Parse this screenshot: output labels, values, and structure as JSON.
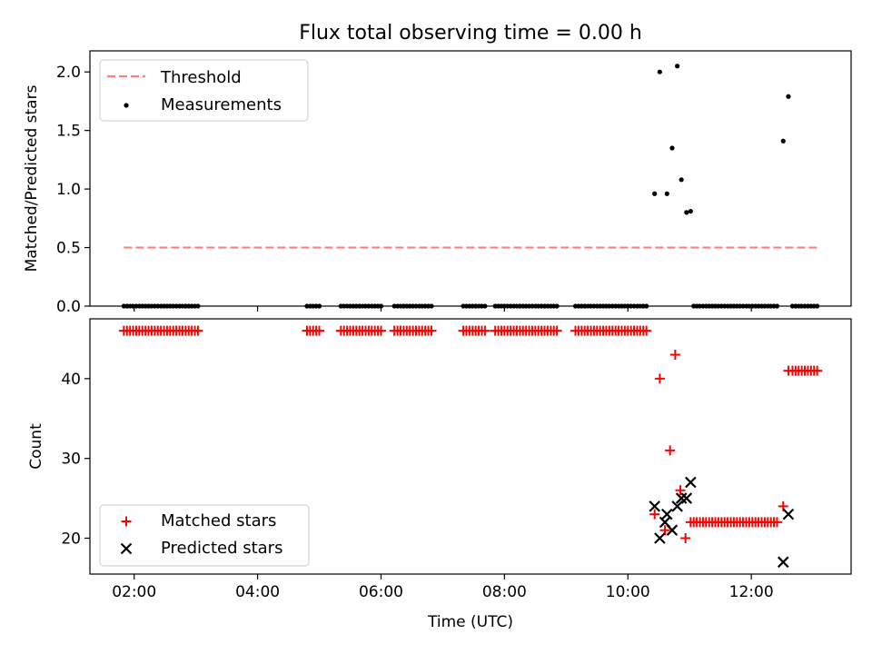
{
  "title": "Flux total observing time = 0.00 h",
  "chart_data": [
    {
      "type": "scatter",
      "panel": "top",
      "ylabel": "Matched/Predicted stars",
      "xlim": [
        "01:17",
        "13:37"
      ],
      "ylim": [
        0,
        2.18
      ],
      "yticks": [
        0.0,
        0.5,
        1.0,
        1.5,
        2.0
      ],
      "legend_position": "upper-left",
      "colors": {
        "threshold": "#ff7f7f",
        "measurements": "#000000"
      },
      "threshold": {
        "name": "Threshold",
        "y": 0.5,
        "x_range": [
          "01:50",
          "13:05"
        ]
      },
      "measurements": {
        "name": "Measurements",
        "x": [
          "01:50",
          "01:53",
          "01:56",
          "01:59",
          "02:02",
          "02:05",
          "02:08",
          "02:11",
          "02:14",
          "02:17",
          "02:20",
          "02:23",
          "02:26",
          "02:29",
          "02:32",
          "02:35",
          "02:38",
          "02:41",
          "02:44",
          "02:47",
          "02:50",
          "02:53",
          "02:56",
          "02:59",
          "03:02",
          "04:48",
          "04:51",
          "04:54",
          "04:57",
          "05:00",
          "05:21",
          "05:24",
          "05:27",
          "05:30",
          "05:33",
          "05:36",
          "05:39",
          "05:42",
          "05:45",
          "05:48",
          "05:51",
          "05:54",
          "05:57",
          "06:00",
          "06:13",
          "06:16",
          "06:19",
          "06:22",
          "06:25",
          "06:28",
          "06:31",
          "06:34",
          "06:37",
          "06:40",
          "06:43",
          "06:46",
          "06:49",
          "07:20",
          "07:23",
          "07:26",
          "07:29",
          "07:32",
          "07:35",
          "07:38",
          "07:41",
          "07:51",
          "07:54",
          "07:57",
          "08:00",
          "08:03",
          "08:06",
          "08:09",
          "08:12",
          "08:15",
          "08:18",
          "08:21",
          "08:24",
          "08:27",
          "08:30",
          "08:33",
          "08:36",
          "08:39",
          "08:42",
          "08:45",
          "08:48",
          "08:51",
          "09:09",
          "09:12",
          "09:15",
          "09:18",
          "09:21",
          "09:24",
          "09:27",
          "09:30",
          "09:33",
          "09:36",
          "09:39",
          "09:42",
          "09:45",
          "09:48",
          "09:51",
          "09:54",
          "09:57",
          "10:00",
          "10:03",
          "10:06",
          "10:09",
          "10:12",
          "10:15",
          "10:18",
          "10:26",
          "10:31",
          "10:38",
          "10:43",
          "10:48",
          "10:52",
          "10:57",
          "11:01",
          "11:04",
          "11:07",
          "11:10",
          "11:13",
          "11:16",
          "11:19",
          "11:22",
          "11:25",
          "11:28",
          "11:31",
          "11:34",
          "11:37",
          "11:40",
          "11:43",
          "11:46",
          "11:49",
          "11:52",
          "11:55",
          "11:58",
          "12:01",
          "12:04",
          "12:07",
          "12:10",
          "12:13",
          "12:16",
          "12:19",
          "12:22",
          "12:25",
          "12:31",
          "12:36",
          "12:40",
          "12:43",
          "12:46",
          "12:49",
          "12:52",
          "12:55",
          "12:58",
          "13:01",
          "13:04"
        ],
        "y": [
          0,
          0,
          0,
          0,
          0,
          0,
          0,
          0,
          0,
          0,
          0,
          0,
          0,
          0,
          0,
          0,
          0,
          0,
          0,
          0,
          0,
          0,
          0,
          0,
          0,
          0,
          0,
          0,
          0,
          0,
          0,
          0,
          0,
          0,
          0,
          0,
          0,
          0,
          0,
          0,
          0,
          0,
          0,
          0,
          0,
          0,
          0,
          0,
          0,
          0,
          0,
          0,
          0,
          0,
          0,
          0,
          0,
          0,
          0,
          0,
          0,
          0,
          0,
          0,
          0,
          0,
          0,
          0,
          0,
          0,
          0,
          0,
          0,
          0,
          0,
          0,
          0,
          0,
          0,
          0,
          0,
          0,
          0,
          0,
          0,
          0,
          0,
          0,
          0,
          0,
          0,
          0,
          0,
          0,
          0,
          0,
          0,
          0,
          0,
          0,
          0,
          0,
          0,
          0,
          0,
          0,
          0,
          0,
          0,
          0,
          0.96,
          2.0,
          0.96,
          1.35,
          2.05,
          1.08,
          0.8,
          0.81,
          0,
          0,
          0,
          0,
          0,
          0,
          0,
          0,
          0,
          0,
          0,
          0,
          0,
          0,
          0,
          0,
          0,
          0,
          0,
          0,
          0,
          0,
          0,
          0,
          0,
          0,
          0,
          0,
          1.41,
          1.79,
          0,
          0,
          0,
          0,
          0,
          0,
          0,
          0,
          0
        ]
      }
    },
    {
      "type": "scatter",
      "panel": "bottom",
      "xlabel": "Time (UTC)",
      "ylabel": "Count",
      "xlim": [
        "01:17",
        "13:37"
      ],
      "ylim": [
        15.5,
        47.5
      ],
      "yticks": [
        20,
        30,
        40
      ],
      "xticks": [
        "02:00",
        "04:00",
        "06:00",
        "08:00",
        "10:00",
        "12:00"
      ],
      "legend_position": "lower-left",
      "colors": {
        "matched": "#ff0000",
        "predicted": "#000000"
      },
      "series": [
        {
          "name": "Matched stars",
          "marker": "+",
          "x": [
            "01:50",
            "01:53",
            "01:56",
            "01:59",
            "02:02",
            "02:05",
            "02:08",
            "02:11",
            "02:14",
            "02:17",
            "02:20",
            "02:23",
            "02:26",
            "02:29",
            "02:32",
            "02:35",
            "02:38",
            "02:41",
            "02:44",
            "02:47",
            "02:50",
            "02:53",
            "02:56",
            "02:59",
            "03:02",
            "04:48",
            "04:51",
            "04:54",
            "04:57",
            "05:00",
            "05:21",
            "05:24",
            "05:27",
            "05:30",
            "05:33",
            "05:36",
            "05:39",
            "05:42",
            "05:45",
            "05:48",
            "05:51",
            "05:54",
            "05:57",
            "06:00",
            "06:13",
            "06:16",
            "06:19",
            "06:22",
            "06:25",
            "06:28",
            "06:31",
            "06:34",
            "06:37",
            "06:40",
            "06:43",
            "06:46",
            "06:49",
            "07:20",
            "07:23",
            "07:26",
            "07:29",
            "07:32",
            "07:35",
            "07:38",
            "07:41",
            "07:51",
            "07:54",
            "07:57",
            "08:00",
            "08:03",
            "08:06",
            "08:09",
            "08:12",
            "08:15",
            "08:18",
            "08:21",
            "08:24",
            "08:27",
            "08:30",
            "08:33",
            "08:36",
            "08:39",
            "08:42",
            "08:45",
            "08:48",
            "08:51",
            "09:09",
            "09:12",
            "09:15",
            "09:18",
            "09:21",
            "09:24",
            "09:27",
            "09:30",
            "09:33",
            "09:36",
            "09:39",
            "09:42",
            "09:45",
            "09:48",
            "09:51",
            "09:54",
            "09:57",
            "10:00",
            "10:03",
            "10:06",
            "10:09",
            "10:12",
            "10:15",
            "10:18",
            "10:26",
            "10:31",
            "10:36",
            "10:41",
            "10:46",
            "10:51",
            "10:56",
            "11:01",
            "11:04",
            "11:07",
            "11:10",
            "11:13",
            "11:16",
            "11:19",
            "11:22",
            "11:25",
            "11:28",
            "11:31",
            "11:34",
            "11:37",
            "11:40",
            "11:43",
            "11:46",
            "11:49",
            "11:52",
            "11:55",
            "11:58",
            "12:01",
            "12:04",
            "12:07",
            "12:10",
            "12:13",
            "12:16",
            "12:19",
            "12:22",
            "12:25",
            "12:31",
            "12:36",
            "12:40",
            "12:43",
            "12:46",
            "12:49",
            "12:52",
            "12:55",
            "12:58",
            "13:01",
            "13:04"
          ],
          "y": [
            46,
            46,
            46,
            46,
            46,
            46,
            46,
            46,
            46,
            46,
            46,
            46,
            46,
            46,
            46,
            46,
            46,
            46,
            46,
            46,
            46,
            46,
            46,
            46,
            46,
            46,
            46,
            46,
            46,
            46,
            46,
            46,
            46,
            46,
            46,
            46,
            46,
            46,
            46,
            46,
            46,
            46,
            46,
            46,
            46,
            46,
            46,
            46,
            46,
            46,
            46,
            46,
            46,
            46,
            46,
            46,
            46,
            46,
            46,
            46,
            46,
            46,
            46,
            46,
            46,
            46,
            46,
            46,
            46,
            46,
            46,
            46,
            46,
            46,
            46,
            46,
            46,
            46,
            46,
            46,
            46,
            46,
            46,
            46,
            46,
            46,
            46,
            46,
            46,
            46,
            46,
            46,
            46,
            46,
            46,
            46,
            46,
            46,
            46,
            46,
            46,
            46,
            46,
            46,
            46,
            46,
            46,
            46,
            46,
            46,
            23,
            40,
            21,
            31,
            43,
            26,
            20,
            22,
            22,
            22,
            22,
            22,
            22,
            22,
            22,
            22,
            22,
            22,
            22,
            22,
            22,
            22,
            22,
            22,
            22,
            22,
            22,
            22,
            22,
            22,
            22,
            22,
            22,
            22,
            22,
            22,
            24,
            41,
            41,
            41,
            41,
            41,
            41,
            41,
            41,
            41,
            41
          ]
        },
        {
          "name": "Predicted stars",
          "marker": "x",
          "x": [
            "10:26",
            "10:31",
            "10:36",
            "10:38",
            "10:43",
            "10:48",
            "10:52",
            "10:57",
            "11:01",
            "12:31",
            "12:36"
          ],
          "y": [
            24,
            20,
            22,
            23,
            21,
            24,
            25,
            25,
            27,
            17,
            23
          ]
        }
      ]
    }
  ]
}
